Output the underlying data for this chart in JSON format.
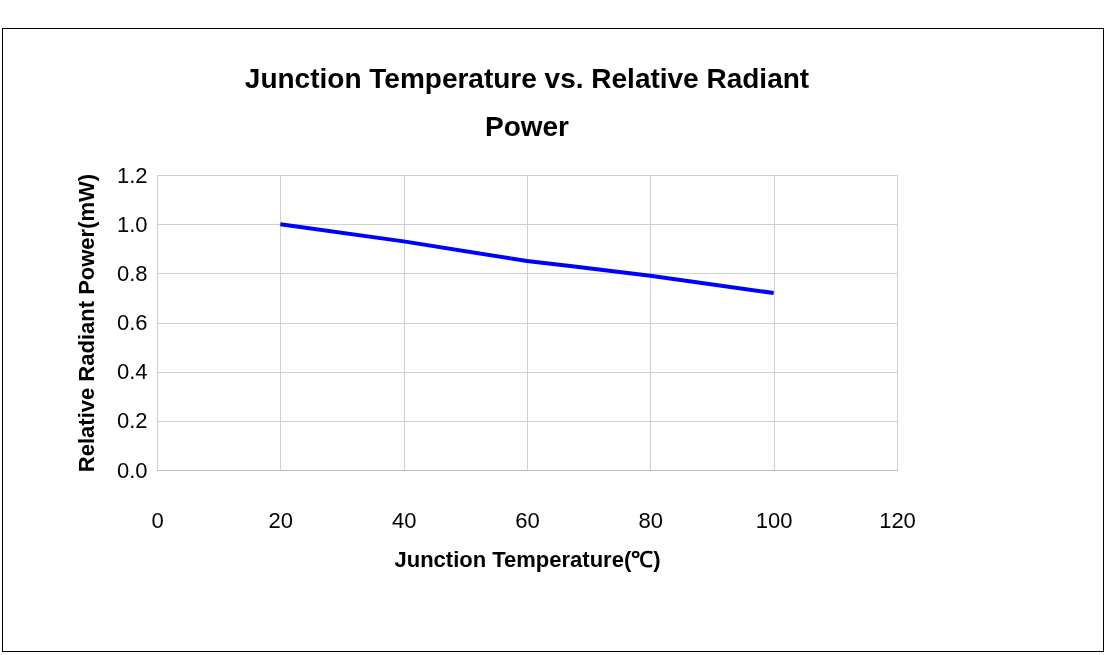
{
  "chart_data": {
    "type": "line",
    "title": [
      "Junction Temperature vs. Relative Radiant",
      "Power"
    ],
    "xlabel": "Junction Temperature(℃)",
    "ylabel": "Relative Radiant Power(mW)",
    "x": [
      20,
      40,
      60,
      67,
      80,
      100
    ],
    "series": [
      {
        "color": "#0000ff",
        "values": [
          1.0,
          0.93,
          0.85,
          0.83,
          0.79,
          0.72
        ]
      }
    ],
    "xlim": [
      0,
      120
    ],
    "xticks": [
      0,
      20,
      40,
      60,
      80,
      100,
      120
    ],
    "ylim": [
      0,
      1.2
    ],
    "yticks": [
      {
        "value": 0,
        "label": "0.0"
      },
      {
        "value": 0.2,
        "label": "0.2"
      },
      {
        "value": 0.4,
        "label": "0.4"
      },
      {
        "value": 0.6,
        "label": "0.6"
      },
      {
        "value": 0.8,
        "label": "0.8"
      },
      {
        "value": 1.0,
        "label": "1.0"
      },
      {
        "value": 1.2,
        "label": "1.2"
      }
    ],
    "grid": true,
    "marker": "none",
    "line_style": "solid"
  }
}
